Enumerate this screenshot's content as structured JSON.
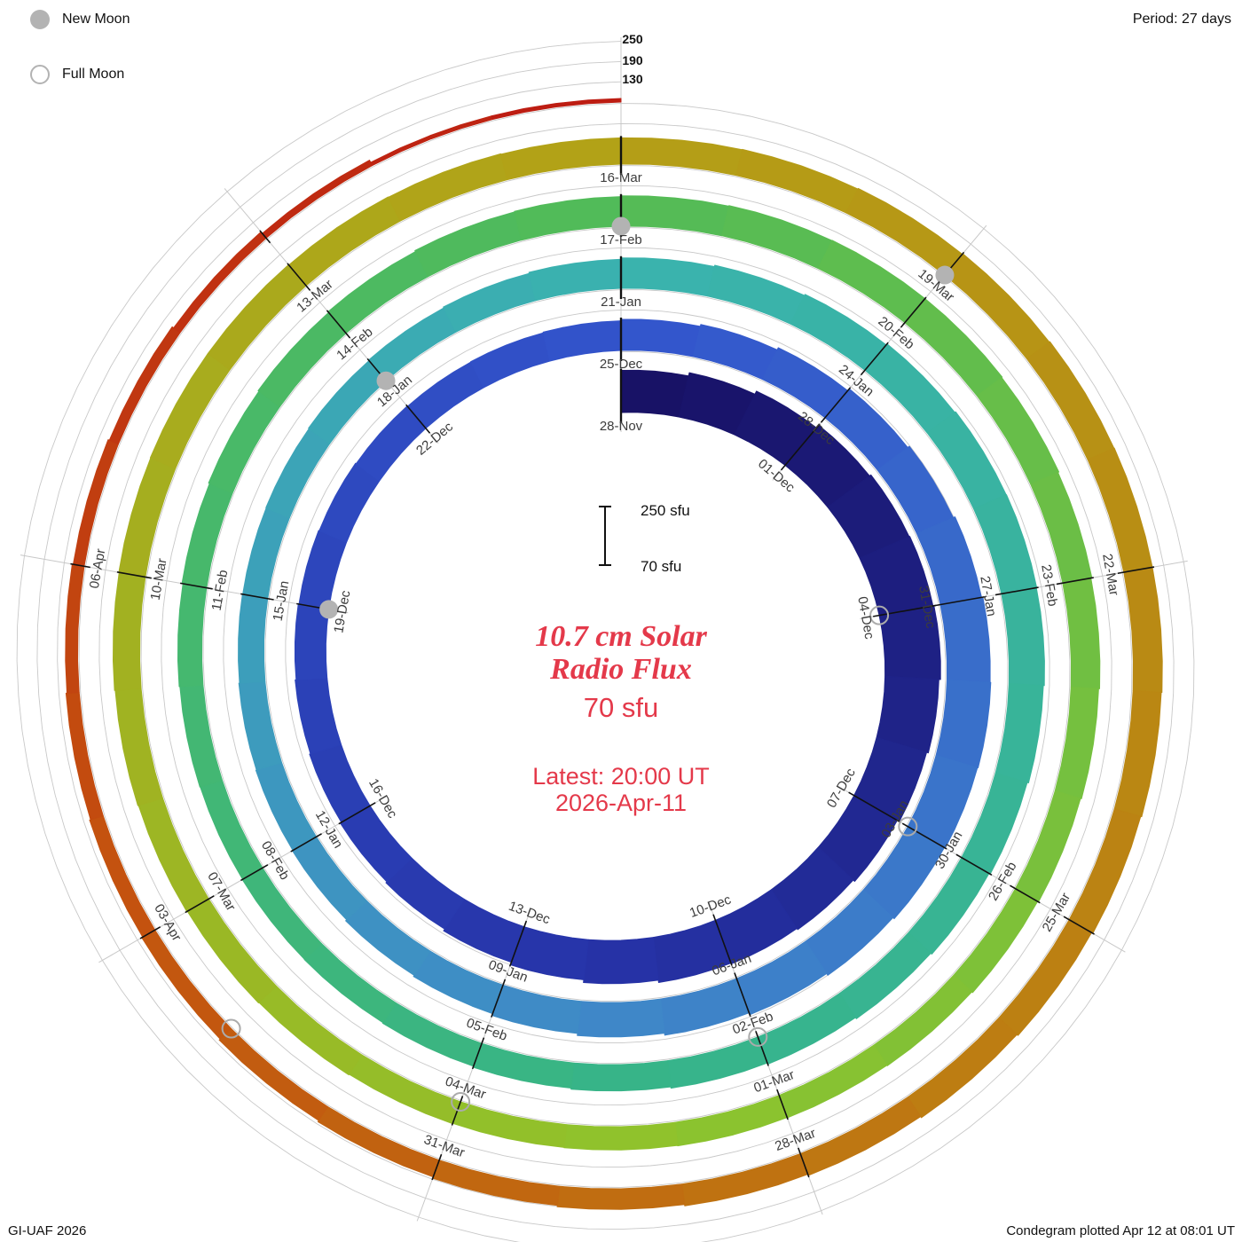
{
  "header": {
    "period_label": "Period: 27 days"
  },
  "legend": {
    "new_moon": "New Moon",
    "full_moon": "Full Moon"
  },
  "center": {
    "title_line1": "10.7 cm Solar",
    "title_line2": "Radio Flux",
    "current_value": "70 sfu",
    "latest_line1": "Latest: 20:00 UT",
    "latest_line2": "2026-Apr-11"
  },
  "scale_bar": {
    "top": "250 sfu",
    "bottom": "70 sfu"
  },
  "radial_axis_labels": [
    "250",
    "190",
    "130"
  ],
  "footer": {
    "left": "GI-UAF 2026",
    "right": "Condegram plotted Apr 12 at 08:01 UT"
  },
  "colors": {
    "accent_red": "#e4394a",
    "moon_gray": "#b3b3b3",
    "grid_gray": "#c8c8c8",
    "tick_black": "#111111"
  },
  "chart_data": {
    "type": "spiral_bar_condegram",
    "title": "10.7 cm Solar Radio Flux",
    "flux_unit": "sfu",
    "period_days": 27,
    "start_date": "2025-11-28",
    "end_date": "2026-04-11",
    "latest_value_sfu": 70,
    "baseline_sfu": 70,
    "gridline_sfu": [
      130,
      190,
      250
    ],
    "tick_every_days": 3,
    "tick_labels": [
      "28-Nov",
      "01-Dec",
      "04-Dec",
      "07-Dec",
      "10-Dec",
      "13-Dec",
      "16-Dec",
      "19-Dec",
      "22-Dec",
      "25-Dec",
      "28-Dec",
      "31-Dec",
      "03-Jan",
      "06-Jan",
      "09-Jan",
      "12-Jan",
      "15-Jan",
      "18-Jan",
      "21-Jan",
      "24-Jan",
      "27-Jan",
      "30-Jan",
      "02-Feb",
      "05-Feb",
      "08-Feb",
      "11-Feb",
      "14-Feb",
      "17-Feb",
      "20-Feb",
      "23-Feb",
      "26-Feb",
      "01-Mar",
      "04-Mar",
      "07-Mar",
      "10-Mar",
      "13-Mar",
      "16-Mar",
      "19-Mar",
      "22-Mar",
      "25-Mar",
      "28-Mar",
      "31-Mar",
      "03-Apr",
      "06-Apr"
    ],
    "daily_flux": [
      195,
      205,
      215,
      225,
      230,
      232,
      235,
      230,
      225,
      218,
      212,
      208,
      205,
      198,
      190,
      182,
      176,
      172,
      168,
      165,
      162,
      160,
      158,
      156,
      155,
      156,
      158,
      162,
      168,
      175,
      182,
      188,
      194,
      198,
      200,
      198,
      195,
      190,
      184,
      178,
      172,
      166,
      160,
      156,
      152,
      150,
      148,
      146,
      145,
      146,
      148,
      150,
      153,
      156,
      160,
      164,
      168,
      172,
      175,
      176,
      175,
      172,
      168,
      164,
      160,
      156,
      152,
      148,
      145,
      142,
      140,
      139,
      138,
      139,
      141,
      144,
      147,
      150,
      153,
      156,
      158,
      160,
      162,
      163,
      163,
      161,
      158,
      155,
      152,
      149,
      146,
      143,
      141,
      140,
      139,
      138,
      139,
      141,
      143,
      145,
      147,
      149,
      150,
      151,
      151,
      150,
      149,
      148,
      148,
      149,
      151,
      153,
      155,
      156,
      156,
      154,
      151,
      147,
      143,
      139,
      135,
      131,
      127,
      123,
      119,
      115,
      112,
      109,
      106,
      103,
      99,
      94,
      88,
      79,
      70
    ],
    "new_moons": [
      {
        "day_index": 21,
        "date": "19-Dec"
      },
      {
        "day_index": 51,
        "date": "18-Jan"
      },
      {
        "day_index": 81,
        "date": "17-Feb"
      },
      {
        "day_index": 111,
        "date": "19-Mar"
      }
    ],
    "full_moons": [
      {
        "day_index": 6,
        "date": "04-Dec"
      },
      {
        "day_index": 36,
        "date": "03-Jan"
      },
      {
        "day_index": 66,
        "date": "02-Feb"
      },
      {
        "day_index": 96,
        "date": "04-Mar"
      },
      {
        "day_index": 125,
        "date": "02-Apr"
      }
    ],
    "color_stops": [
      [
        0.0,
        "#181266"
      ],
      [
        0.1,
        "#2633a8"
      ],
      [
        0.2,
        "#3355cc"
      ],
      [
        0.3,
        "#3f88c8"
      ],
      [
        0.4,
        "#3ab3ae"
      ],
      [
        0.5,
        "#37b488"
      ],
      [
        0.6,
        "#52bb58"
      ],
      [
        0.7,
        "#8fc32c"
      ],
      [
        0.8,
        "#b3a117"
      ],
      [
        0.88,
        "#bd7d12"
      ],
      [
        0.94,
        "#c4520f"
      ],
      [
        1.0,
        "#bd1d12"
      ]
    ],
    "legend_position": "top-left",
    "grid": true
  }
}
